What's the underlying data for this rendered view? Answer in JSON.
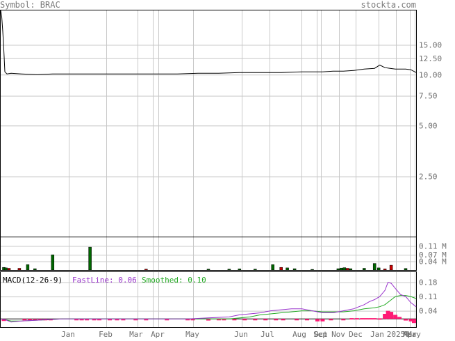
{
  "header": {
    "symbol_text": "Symbol: BRAC",
    "brand": "stockta.com"
  },
  "chart_data": [
    {
      "id": "price",
      "type": "line",
      "scale": "log",
      "ylim": [
        1.1,
        24
      ],
      "yticks": [
        "15.00",
        "12.50",
        "10.00",
        "7.50",
        "5.00",
        "2.50"
      ],
      "x_labels": [
        "Jan",
        "Feb",
        "Mar",
        "Apr",
        "May",
        "Jun",
        "Jul",
        "Aug",
        "Sep",
        "Oct",
        "Nov",
        "Dec",
        "Jan",
        "2025",
        "Mar",
        "Apr",
        "May"
      ],
      "x": [
        0,
        1,
        2,
        3,
        4,
        6,
        10,
        20,
        35,
        50,
        70,
        90,
        110,
        130,
        150,
        170,
        190,
        210,
        230,
        250,
        270,
        290,
        310,
        320,
        330,
        340,
        350,
        360,
        365,
        370,
        375,
        380,
        385,
        390,
        395,
        400
      ],
      "values": [
        24,
        22,
        18,
        14,
        10.4,
        10.1,
        10.2,
        10.1,
        10.0,
        10.1,
        10.1,
        10.1,
        10.1,
        10.1,
        10.1,
        10.1,
        10.2,
        10.2,
        10.3,
        10.3,
        10.3,
        10.4,
        10.4,
        10.5,
        10.5,
        10.6,
        10.8,
        10.9,
        11.4,
        11.0,
        10.9,
        10.8,
        10.8,
        10.8,
        10.7,
        10.3
      ]
    },
    {
      "id": "volume",
      "type": "bar",
      "yticks": [
        "0.11 M",
        "0.07 M",
        "0.04 M"
      ],
      "ylim": [
        0,
        0.15
      ],
      "bars": [
        {
          "x": 3,
          "v": 0.012,
          "c": "green"
        },
        {
          "x": 5,
          "v": 0.01,
          "c": "green"
        },
        {
          "x": 8,
          "v": 0.008,
          "c": "red"
        },
        {
          "x": 18,
          "v": 0.008,
          "c": "red"
        },
        {
          "x": 26,
          "v": 0.025,
          "c": "green"
        },
        {
          "x": 33,
          "v": 0.006,
          "c": "green"
        },
        {
          "x": 50,
          "v": 0.07,
          "c": "green"
        },
        {
          "x": 86,
          "v": 0.105,
          "c": "green"
        },
        {
          "x": 140,
          "v": 0.004,
          "c": "red"
        },
        {
          "x": 200,
          "v": 0.004,
          "c": "green"
        },
        {
          "x": 220,
          "v": 0.004,
          "c": "green"
        },
        {
          "x": 230,
          "v": 0.005,
          "c": "green"
        },
        {
          "x": 245,
          "v": 0.004,
          "c": "green"
        },
        {
          "x": 262,
          "v": 0.025,
          "c": "green"
        },
        {
          "x": 270,
          "v": 0.012,
          "c": "red"
        },
        {
          "x": 276,
          "v": 0.01,
          "c": "green"
        },
        {
          "x": 283,
          "v": 0.006,
          "c": "green"
        },
        {
          "x": 300,
          "v": 0.003,
          "c": "green"
        },
        {
          "x": 325,
          "v": 0.006,
          "c": "green"
        },
        {
          "x": 328,
          "v": 0.009,
          "c": "green"
        },
        {
          "x": 331,
          "v": 0.011,
          "c": "green"
        },
        {
          "x": 334,
          "v": 0.008,
          "c": "red"
        },
        {
          "x": 337,
          "v": 0.006,
          "c": "green"
        },
        {
          "x": 350,
          "v": 0.008,
          "c": "green"
        },
        {
          "x": 360,
          "v": 0.03,
          "c": "green"
        },
        {
          "x": 364,
          "v": 0.01,
          "c": "green"
        },
        {
          "x": 370,
          "v": 0.005,
          "c": "red"
        },
        {
          "x": 376,
          "v": 0.022,
          "c": "red"
        },
        {
          "x": 390,
          "v": 0.007,
          "c": "green"
        }
      ]
    },
    {
      "id": "macd",
      "type": "line",
      "title": "MACD(12-26-9)",
      "fast_label": "FastLine: 0.06",
      "smooth_label": "Smoothed: 0.10",
      "ylim": [
        -0.04,
        0.23
      ],
      "yticks": [
        "0.18",
        "0.11",
        "0.04"
      ],
      "fast": {
        "x": [
          0,
          5,
          10,
          20,
          40,
          60,
          80,
          100,
          120,
          140,
          160,
          180,
          200,
          220,
          230,
          240,
          250,
          260,
          270,
          280,
          290,
          300,
          310,
          320,
          330,
          340,
          345,
          350,
          355,
          360,
          365,
          370,
          373,
          376,
          380,
          385,
          390,
          395,
          400
        ],
        "values": [
          0.0,
          -0.005,
          -0.015,
          -0.01,
          -0.005,
          0.0,
          0.0,
          0.0,
          0.0,
          0.0,
          0.0,
          0.0,
          0.005,
          0.01,
          0.02,
          0.025,
          0.03,
          0.04,
          0.045,
          0.05,
          0.05,
          0.04,
          0.03,
          0.03,
          0.04,
          0.05,
          0.06,
          0.07,
          0.085,
          0.095,
          0.11,
          0.14,
          0.18,
          0.175,
          0.15,
          0.12,
          0.11,
          0.08,
          0.06
        ]
      },
      "smooth": {
        "x": [
          0,
          10,
          20,
          40,
          60,
          80,
          100,
          120,
          140,
          160,
          180,
          200,
          220,
          240,
          250,
          260,
          270,
          280,
          290,
          300,
          310,
          320,
          330,
          340,
          350,
          360,
          365,
          370,
          375,
          380,
          385,
          390,
          395,
          400
        ],
        "values": [
          0.0,
          -0.01,
          -0.01,
          -0.005,
          0.0,
          0.0,
          0.0,
          0.0,
          0.0,
          0.0,
          0.0,
          0.0,
          0.0,
          0.01,
          0.02,
          0.025,
          0.03,
          0.035,
          0.04,
          0.04,
          0.035,
          0.035,
          0.035,
          0.04,
          0.05,
          0.055,
          0.06,
          0.07,
          0.09,
          0.11,
          0.115,
          0.115,
          0.11,
          0.1
        ]
      },
      "histogram": [
        {
          "x": 3,
          "v": -0.01
        },
        {
          "x": 23,
          "v": -0.004
        },
        {
          "x": 28,
          "v": -0.003
        },
        {
          "x": 33,
          "v": -0.004
        },
        {
          "x": 38,
          "v": -0.004
        },
        {
          "x": 43,
          "v": -0.004
        },
        {
          "x": 48,
          "v": -0.004
        },
        {
          "x": 73,
          "v": -0.004
        },
        {
          "x": 78,
          "v": -0.004
        },
        {
          "x": 83,
          "v": -0.004
        },
        {
          "x": 90,
          "v": -0.004
        },
        {
          "x": 95,
          "v": -0.003
        },
        {
          "x": 105,
          "v": -0.004
        },
        {
          "x": 112,
          "v": -0.004
        },
        {
          "x": 118,
          "v": -0.003
        },
        {
          "x": 130,
          "v": -0.004
        },
        {
          "x": 140,
          "v": -0.004
        },
        {
          "x": 160,
          "v": -0.004
        },
        {
          "x": 180,
          "v": -0.005
        },
        {
          "x": 185,
          "v": -0.005
        },
        {
          "x": 200,
          "v": -0.008
        },
        {
          "x": 210,
          "v": -0.007
        },
        {
          "x": 215,
          "v": -0.006
        },
        {
          "x": 225,
          "v": -0.007
        },
        {
          "x": 235,
          "v": -0.006
        },
        {
          "x": 245,
          "v": -0.006
        },
        {
          "x": 255,
          "v": -0.006
        },
        {
          "x": 265,
          "v": -0.006
        },
        {
          "x": 272,
          "v": -0.006
        },
        {
          "x": 285,
          "v": -0.006
        },
        {
          "x": 295,
          "v": -0.006
        },
        {
          "x": 305,
          "v": -0.012
        },
        {
          "x": 310,
          "v": -0.012
        },
        {
          "x": 318,
          "v": -0.006
        },
        {
          "x": 330,
          "v": -0.005
        },
        {
          "x": 338,
          "v": 0.004
        },
        {
          "x": 343,
          "v": 0.004
        },
        {
          "x": 348,
          "v": 0.004
        },
        {
          "x": 352,
          "v": 0.004
        },
        {
          "x": 356,
          "v": 0.004
        },
        {
          "x": 360,
          "v": 0.004
        },
        {
          "x": 365,
          "v": 0.003
        },
        {
          "x": 370,
          "v": 0.025
        },
        {
          "x": 373,
          "v": 0.04
        },
        {
          "x": 376,
          "v": 0.035
        },
        {
          "x": 380,
          "v": 0.02
        },
        {
          "x": 384,
          "v": 0.01
        },
        {
          "x": 390,
          "v": -0.008
        },
        {
          "x": 395,
          "v": -0.012
        },
        {
          "x": 398,
          "v": -0.02
        }
      ]
    }
  ]
}
